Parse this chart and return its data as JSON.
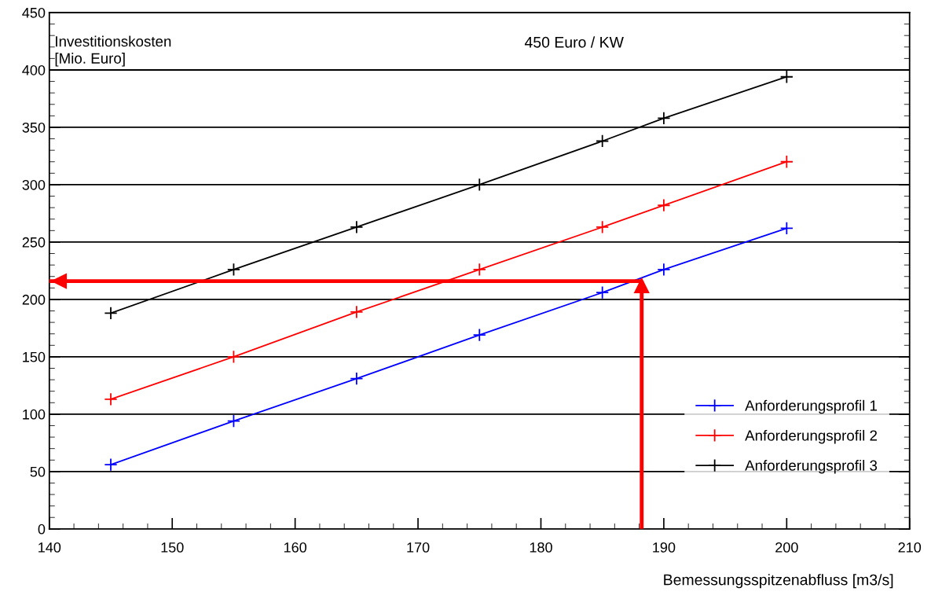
{
  "chart_data": {
    "type": "line",
    "ylabel": "Investitionskosten\n[Mio. Euro]",
    "xlabel": "Bemessungsspitzenabfluss [m3/s]",
    "annotations": [
      "450 Euro / KW"
    ],
    "x": [
      145,
      155,
      165,
      175,
      185,
      190,
      200
    ],
    "series": [
      {
        "name": "Anforderungsprofil 1",
        "color": "#0000ff",
        "values": [
          56,
          94,
          131,
          169,
          206,
          226,
          262
        ]
      },
      {
        "name": "Anforderungsprofil 2",
        "color": "#ff0000",
        "values": [
          113,
          150,
          189,
          226,
          263,
          282,
          320
        ]
      },
      {
        "name": "Anforderungsprofil 3",
        "color": "#000000",
        "values": [
          188,
          226,
          263,
          300,
          338,
          358,
          394
        ]
      }
    ],
    "ref_lines": [
      {
        "axis": "y",
        "value": 216,
        "color": "#ff0000"
      },
      {
        "axis": "x",
        "value": 188.2,
        "color": "#ff0000"
      }
    ],
    "xlim": [
      140,
      210
    ],
    "xticks": [
      140,
      150,
      160,
      170,
      180,
      190,
      200,
      210
    ],
    "ylim": [
      0,
      450
    ],
    "yticks": [
      0,
      50,
      100,
      150,
      200,
      250,
      300,
      350,
      400,
      450
    ],
    "grid": "y",
    "legend": "bottom right",
    "marker": "cross",
    "line_style": "solid"
  }
}
